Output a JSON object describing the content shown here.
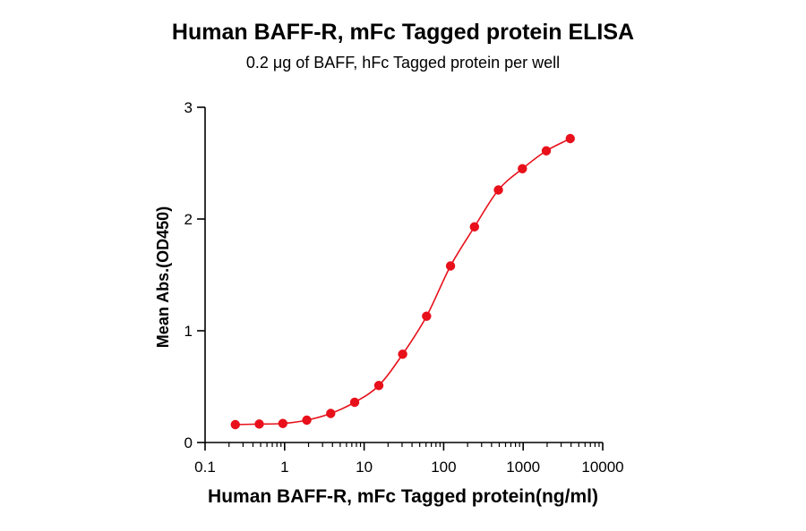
{
  "chart_data": {
    "type": "scatter",
    "title": "Human BAFF-R, mFc Tagged protein ELISA",
    "subtitle": "0.2 μg of BAFF, hFc Tagged protein per well",
    "xlabel": "Human BAFF-R, mFc Tagged protein(ng/ml)",
    "ylabel": "Mean Abs.(OD450)",
    "x_scale": "log",
    "xlim": [
      0.1,
      10000
    ],
    "ylim": [
      0,
      3
    ],
    "x_ticks": [
      "0.1",
      "1",
      "10",
      "100",
      "1000",
      "10000"
    ],
    "x_tick_values": [
      0.1,
      1,
      10,
      100,
      1000,
      10000
    ],
    "y_ticks": [
      "0",
      "1",
      "2",
      "3"
    ],
    "y_tick_values": [
      0,
      1,
      2,
      3
    ],
    "grid": false,
    "legend": "none",
    "series": [
      {
        "color": "#e8101a",
        "fit": "4PL sigmoidal curve",
        "x": [
          0.24,
          0.48,
          0.95,
          1.9,
          3.8,
          7.6,
          15.3,
          30.5,
          61,
          122,
          244,
          488,
          977,
          1953,
          3906
        ],
        "y": [
          0.16,
          0.165,
          0.17,
          0.2,
          0.26,
          0.36,
          0.51,
          0.79,
          1.13,
          1.58,
          1.93,
          2.26,
          2.45,
          2.61,
          2.72
        ]
      }
    ]
  }
}
